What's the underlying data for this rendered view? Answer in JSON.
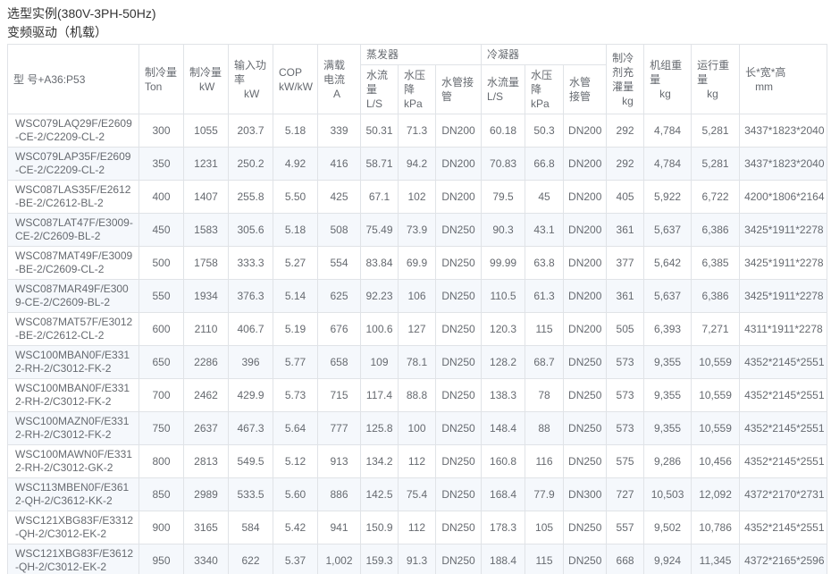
{
  "page": {
    "title": "选型实例(380V-3PH-50Hz)",
    "subtitle": "变频驱动（机载）"
  },
  "table": {
    "model_header": "型 号+A36:P53",
    "columns": [
      {
        "label": "制冷量",
        "unit": "Ton"
      },
      {
        "label": "制冷量",
        "unit": "kW"
      },
      {
        "label": "输入功率",
        "unit": "kW"
      },
      {
        "label": "COP",
        "unit": "kW/kW"
      },
      {
        "label": "满载电流",
        "unit": "A"
      }
    ],
    "groups": [
      {
        "label": "蒸发器",
        "sub": [
          {
            "label": "水流量L/S",
            "unit": ""
          },
          {
            "label": "水压降",
            "unit": "kPa"
          },
          {
            "label": "水管接管",
            "unit": ""
          }
        ]
      },
      {
        "label": "冷凝器",
        "sub": [
          {
            "label": "水流量L/S",
            "unit": ""
          },
          {
            "label": "水压降",
            "unit": "kPa"
          },
          {
            "label": "水管接管",
            "unit": ""
          }
        ]
      }
    ],
    "tail_columns": [
      {
        "label": "制冷剂充灌量",
        "unit": "kg"
      },
      {
        "label": "机组重量",
        "unit": "kg"
      },
      {
        "label": "运行重量",
        "unit": "kg"
      },
      {
        "label": "长*宽*高",
        "unit": "mm"
      }
    ],
    "rows": [
      [
        "WSC079LAQ29F/E2609-CE-2/C2209-CL-2",
        "300",
        "1055",
        "203.7",
        "5.18",
        "339",
        "50.31",
        "71.3",
        "DN200",
        "60.18",
        "50.3",
        "DN200",
        "292",
        "4,784",
        "5,281",
        "3437*1823*2040"
      ],
      [
        "WSC079LAP35F/E2609-CE-2/C2209-CL-2",
        "350",
        "1231",
        "250.2",
        "4.92",
        "416",
        "58.71",
        "94.2",
        "DN200",
        "70.83",
        "66.8",
        "DN200",
        "292",
        "4,784",
        "5,281",
        "3437*1823*2040"
      ],
      [
        "WSC087LAS35F/E2612-BE-2/C2612-BL-2",
        "400",
        "1407",
        "255.8",
        "5.50",
        "425",
        "67.1",
        "102",
        "DN200",
        "79.5",
        "45",
        "DN200",
        "405",
        "5,922",
        "6,722",
        "4200*1806*2164"
      ],
      [
        "WSC087LAT47F/E3009-CE-2/C2609-BL-2",
        "450",
        "1583",
        "305.6",
        "5.18",
        "508",
        "75.49",
        "73.9",
        "DN250",
        "90.3",
        "43.1",
        "DN200",
        "361",
        "5,637",
        "6,386",
        "3425*1911*2278"
      ],
      [
        "WSC087MAT49F/E3009-BE-2/C2609-CL-2",
        "500",
        "1758",
        "333.3",
        "5.27",
        "554",
        "83.84",
        "69.9",
        "DN250",
        "99.99",
        "63.8",
        "DN200",
        "377",
        "5,642",
        "6,385",
        "3425*1911*2278"
      ],
      [
        "WSC087MAR49F/E3009-CE-2/C2609-BL-2",
        "550",
        "1934",
        "376.3",
        "5.14",
        "625",
        "92.23",
        "106",
        "DN250",
        "110.5",
        "61.3",
        "DN200",
        "361",
        "5,637",
        "6,386",
        "3425*1911*2278"
      ],
      [
        "WSC087MAT57F/E3012-BE-2/C2612-CL-2",
        "600",
        "2110",
        "406.7",
        "5.19",
        "676",
        "100.6",
        "127",
        "DN250",
        "120.3",
        "115",
        "DN200",
        "505",
        "6,393",
        "7,271",
        "4311*1911*2278"
      ],
      [
        "WSC100MBAN0F/E3312-RH-2/C3012-FK-2",
        "650",
        "2286",
        "396",
        "5.77",
        "658",
        "109",
        "78.1",
        "DN250",
        "128.2",
        "68.7",
        "DN250",
        "573",
        "9,355",
        "10,559",
        "4352*2145*2551"
      ],
      [
        "WSC100MBAN0F/E3312-RH-2/C3012-FK-2",
        "700",
        "2462",
        "429.9",
        "5.73",
        "715",
        "117.4",
        "88.8",
        "DN250",
        "138.3",
        "78",
        "DN250",
        "573",
        "9,355",
        "10,559",
        "4352*2145*2551"
      ],
      [
        "WSC100MAZN0F/E3312-RH-2/C3012-FK-2",
        "750",
        "2637",
        "467.3",
        "5.64",
        "777",
        "125.8",
        "100",
        "DN250",
        "148.4",
        "88",
        "DN250",
        "573",
        "9,355",
        "10,559",
        "4352*2145*2551"
      ],
      [
        "WSC100MAWN0F/E3312-RH-2/C3012-GK-2",
        "800",
        "2813",
        "549.5",
        "5.12",
        "913",
        "134.2",
        "112",
        "DN250",
        "160.8",
        "116",
        "DN250",
        "575",
        "9,286",
        "10,456",
        "4352*2145*2551"
      ],
      [
        "WSC113MBEN0F/E3612-QH-2/C3612-KK-2",
        "850",
        "2989",
        "533.5",
        "5.60",
        "886",
        "142.5",
        "75.4",
        "DN250",
        "168.4",
        "77.9",
        "DN300",
        "727",
        "10,503",
        "12,092",
        "4372*2170*2731"
      ],
      [
        "WSC121XBG83F/E3312-QH-2/C3012-EK-2",
        "900",
        "3165",
        "584",
        "5.42",
        "941",
        "150.9",
        "112",
        "DN250",
        "178.3",
        "105",
        "DN250",
        "557",
        "9,502",
        "10,786",
        "4352*2145*2551"
      ],
      [
        "WSC121XBG83F/E3612-QH-2/C3012-EK-2",
        "950",
        "3340",
        "622",
        "5.37",
        "1,002",
        "159.3",
        "91.3",
        "DN250",
        "188.4",
        "115",
        "DN250",
        "668",
        "9,924",
        "11,345",
        "4372*2165*2596"
      ]
    ]
  },
  "colors": {
    "row_alt": "#f5f8fc",
    "border": "#e0e3e7",
    "text": "#666a70",
    "title_text": "#333333"
  }
}
